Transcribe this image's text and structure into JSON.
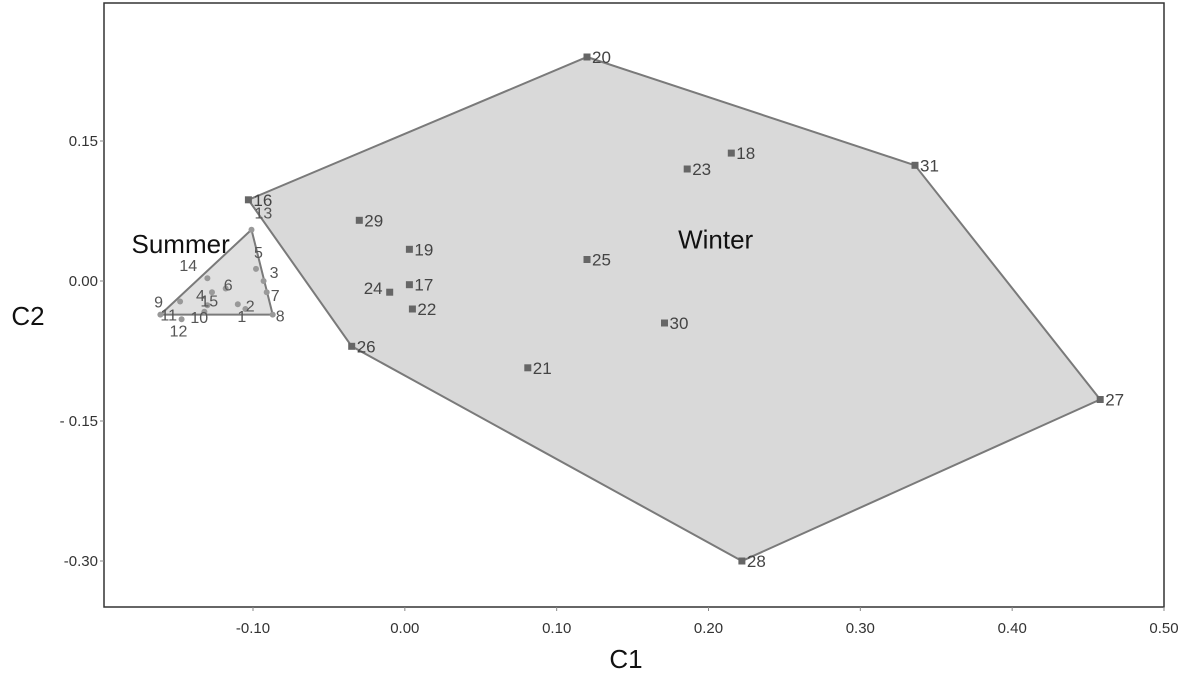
{
  "chart_data": {
    "type": "scatter",
    "title": "",
    "xlabel": "C1",
    "ylabel": "C2",
    "xlim": [
      -0.2,
      0.5
    ],
    "ylim": [
      -0.35,
      0.3
    ],
    "x_ticks": [
      {
        "value": -0.1,
        "label": "-0.10"
      },
      {
        "value": 0.0,
        "label": "0.00"
      },
      {
        "value": 0.1,
        "label": "0.10"
      },
      {
        "value": 0.2,
        "label": "0.20"
      },
      {
        "value": 0.3,
        "label": "0.30"
      },
      {
        "value": 0.4,
        "label": "0.40"
      },
      {
        "value": 0.5,
        "label": "0.50"
      }
    ],
    "y_ticks": [
      {
        "value": 0.15,
        "label": "0.15"
      },
      {
        "value": 0.0,
        "label": "0.00"
      },
      {
        "value": -0.15,
        "label": "- 0.15"
      },
      {
        "value": -0.3,
        "label": "-0.30"
      }
    ],
    "grid": false,
    "groups": [
      {
        "name": "Summer",
        "label_pos": [
          -0.18,
          0.03
        ],
        "fill": "#e0e0e0",
        "stroke": "#7a7a7a",
        "marker": "circle",
        "marker_color": "#999999",
        "hull": [
          "13",
          "8",
          "11"
        ],
        "points": [
          {
            "id": "1",
            "x": -0.105,
            "y": -0.03
          },
          {
            "id": "2",
            "x": -0.11,
            "y": -0.025
          },
          {
            "id": "3",
            "x": -0.093,
            "y": 0.0
          },
          {
            "id": "4",
            "x": -0.127,
            "y": -0.012
          },
          {
            "id": "5",
            "x": -0.098,
            "y": 0.013
          },
          {
            "id": "6",
            "x": -0.118,
            "y": -0.008
          },
          {
            "id": "7",
            "x": -0.091,
            "y": -0.012
          },
          {
            "id": "8",
            "x": -0.087,
            "y": -0.036
          },
          {
            "id": "9",
            "x": -0.148,
            "y": -0.022
          },
          {
            "id": "10",
            "x": -0.132,
            "y": -0.033
          },
          {
            "id": "11",
            "x": -0.161,
            "y": -0.036
          },
          {
            "id": "12",
            "x": -0.147,
            "y": -0.041
          },
          {
            "id": "13",
            "x": -0.101,
            "y": 0.055
          },
          {
            "id": "14",
            "x": -0.13,
            "y": 0.003
          },
          {
            "id": "15",
            "x": -0.13,
            "y": -0.026
          }
        ]
      },
      {
        "name": "Winter",
        "label_pos": [
          0.18,
          0.035
        ],
        "fill": "#d9d9d9",
        "stroke": "#7a7a7a",
        "marker": "square",
        "marker_color": "#666666",
        "hull": [
          "20",
          "31",
          "27",
          "28",
          "26",
          "16"
        ],
        "points": [
          {
            "id": "16",
            "x": -0.103,
            "y": 0.087
          },
          {
            "id": "17",
            "x": 0.003,
            "y": -0.004
          },
          {
            "id": "18",
            "x": 0.215,
            "y": 0.137
          },
          {
            "id": "19",
            "x": 0.003,
            "y": 0.034
          },
          {
            "id": "20",
            "x": 0.12,
            "y": 0.24
          },
          {
            "id": "21",
            "x": 0.081,
            "y": -0.093
          },
          {
            "id": "22",
            "x": 0.005,
            "y": -0.03
          },
          {
            "id": "23",
            "x": 0.186,
            "y": 0.12
          },
          {
            "id": "24",
            "x": -0.01,
            "y": -0.012
          },
          {
            "id": "25",
            "x": 0.12,
            "y": 0.023
          },
          {
            "id": "26",
            "x": -0.035,
            "y": -0.07
          },
          {
            "id": "27",
            "x": 0.458,
            "y": -0.127
          },
          {
            "id": "28",
            "x": 0.222,
            "y": -0.3
          },
          {
            "id": "29",
            "x": -0.03,
            "y": 0.065
          },
          {
            "id": "30",
            "x": 0.171,
            "y": -0.045
          },
          {
            "id": "31",
            "x": 0.336,
            "y": 0.124
          }
        ]
      }
    ]
  }
}
